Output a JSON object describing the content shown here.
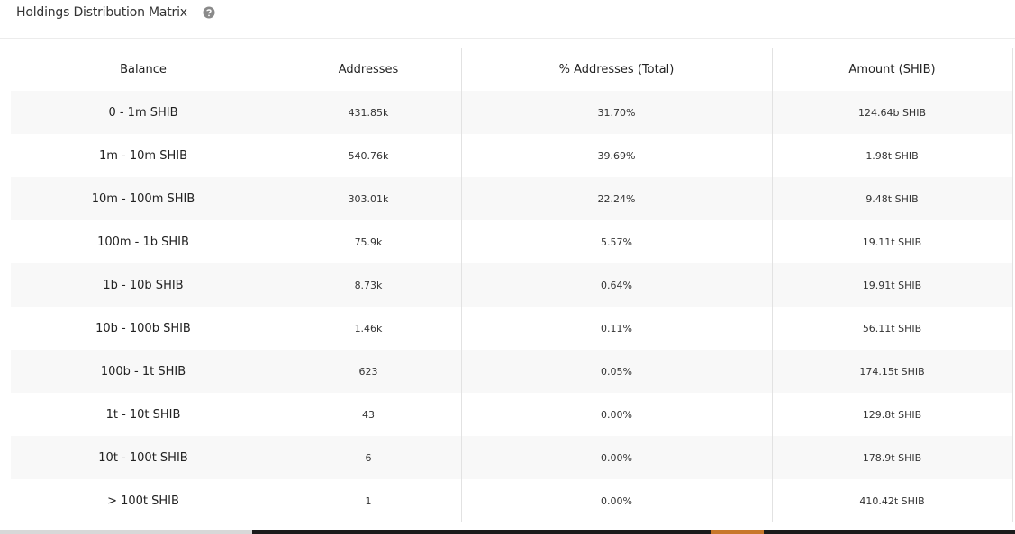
{
  "header": {
    "title": "Holdings Distribution Matrix"
  },
  "table": {
    "columns": [
      "Balance",
      "Addresses",
      "% Addresses (Total)",
      "Amount (SHIB)"
    ],
    "rows": [
      [
        "0 - 1m SHIB",
        "431.85k",
        "31.70%",
        "124.64b SHIB"
      ],
      [
        "1m - 10m SHIB",
        "540.76k",
        "39.69%",
        "1.98t SHIB"
      ],
      [
        "10m - 100m SHIB",
        "303.01k",
        "22.24%",
        "9.48t SHIB"
      ],
      [
        "100m - 1b SHIB",
        "75.9k",
        "5.57%",
        "19.11t SHIB"
      ],
      [
        "1b - 10b SHIB",
        "8.73k",
        "0.64%",
        "19.91t SHIB"
      ],
      [
        "10b - 100b SHIB",
        "1.46k",
        "0.11%",
        "56.11t SHIB"
      ],
      [
        "100b - 1t SHIB",
        "623",
        "0.05%",
        "174.15t SHIB"
      ],
      [
        "1t - 10t SHIB",
        "43",
        "0.00%",
        "129.8t SHIB"
      ],
      [
        "10t - 100t SHIB",
        "6",
        "0.00%",
        "178.9t SHIB"
      ],
      [
        "> 100t SHIB",
        "1",
        "0.00%",
        "410.42t SHIB"
      ]
    ]
  }
}
